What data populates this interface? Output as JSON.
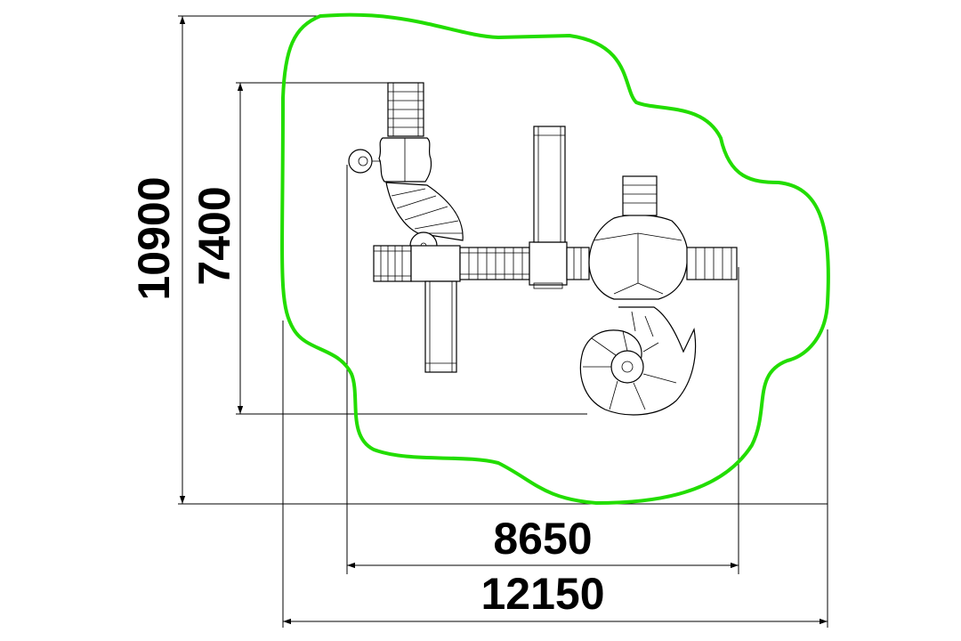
{
  "drawing": {
    "type": "playground equipment plan view with safety zone",
    "safety_zone_color": "#22dd00",
    "line_color": "#000000",
    "dimensions": {
      "overall_width": "12150",
      "equipment_width": "8650",
      "overall_height": "10900",
      "equipment_height": "7400"
    }
  }
}
